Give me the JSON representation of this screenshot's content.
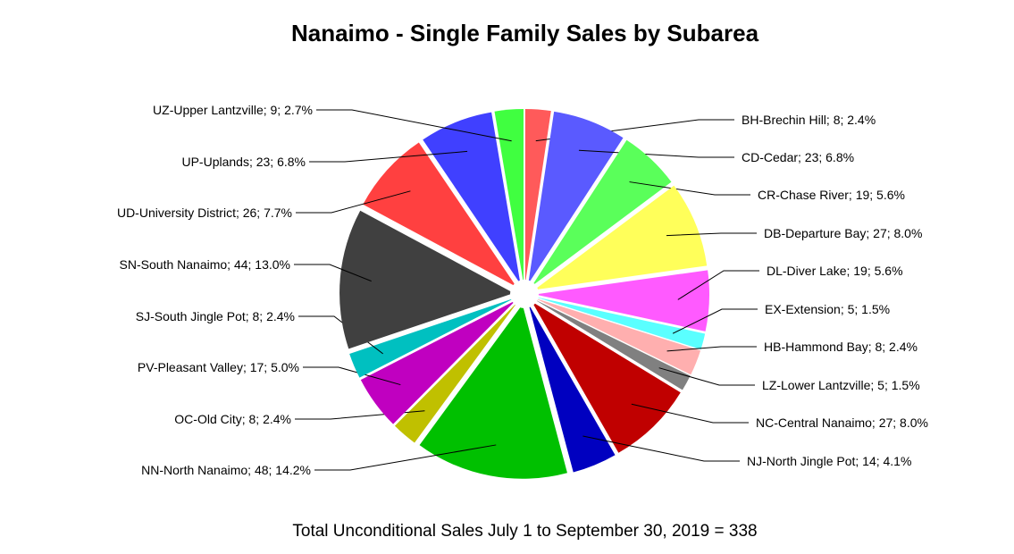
{
  "chart_data": {
    "type": "pie",
    "title": "Nanaimo - Single Family Sales by Subarea",
    "footer": "Total Unconditional Sales July 1 to September 30, 2019 = 338",
    "slices": [
      {
        "label": "BH-Brechin Hill; 8; 2.4%",
        "name": "BH-Brechin Hill",
        "value": 8,
        "percent": 2.4,
        "color": "#FF5A5A"
      },
      {
        "label": "CD-Cedar; 23; 6.8%",
        "name": "CD-Cedar",
        "value": 23,
        "percent": 6.8,
        "color": "#5A5AFF"
      },
      {
        "label": "CR-Chase River; 19; 5.6%",
        "name": "CR-Chase River",
        "value": 19,
        "percent": 5.6,
        "color": "#5AFF5A"
      },
      {
        "label": "DB-Departure Bay; 27; 8.0%",
        "name": "DB-Departure Bay",
        "value": 27,
        "percent": 8.0,
        "color": "#FFFF5A"
      },
      {
        "label": "DL-Diver Lake; 19; 5.6%",
        "name": "DL-Diver Lake",
        "value": 19,
        "percent": 5.6,
        "color": "#FF5AFF"
      },
      {
        "label": "EX-Extension; 5; 1.5%",
        "name": "EX-Extension",
        "value": 5,
        "percent": 1.5,
        "color": "#5AFFFF"
      },
      {
        "label": "HB-Hammond Bay; 8; 2.4%",
        "name": "HB-Hammond Bay",
        "value": 8,
        "percent": 2.4,
        "color": "#FFAFAF"
      },
      {
        "label": "LZ-Lower Lantzville; 5; 1.5%",
        "name": "LZ-Lower Lantzville",
        "value": 5,
        "percent": 1.5,
        "color": "#808080"
      },
      {
        "label": "NC-Central Nanaimo; 27; 8.0%",
        "name": "NC-Central Nanaimo",
        "value": 27,
        "percent": 8.0,
        "color": "#C00000"
      },
      {
        "label": "NJ-North Jingle Pot; 14; 4.1%",
        "name": "NJ-North Jingle Pot",
        "value": 14,
        "percent": 4.1,
        "color": "#0000C0"
      },
      {
        "label": "NN-North Nanaimo; 48; 14.2%",
        "name": "NN-North Nanaimo",
        "value": 48,
        "percent": 14.2,
        "color": "#00C000"
      },
      {
        "label": "OC-Old City; 8; 2.4%",
        "name": "OC-Old City",
        "value": 8,
        "percent": 2.4,
        "color": "#C0C000"
      },
      {
        "label": "PV-Pleasant Valley; 17; 5.0%",
        "name": "PV-Pleasant Valley",
        "value": 17,
        "percent": 5.0,
        "color": "#C000C0"
      },
      {
        "label": "SJ-South Jingle Pot; 8; 2.4%",
        "name": "SJ-South Jingle Pot",
        "value": 8,
        "percent": 2.4,
        "color": "#00C0C0"
      },
      {
        "label": "SN-South Nanaimo; 44; 13.0%",
        "name": "SN-South Nanaimo",
        "value": 44,
        "percent": 13.0,
        "color": "#404040"
      },
      {
        "label": "UD-University District; 26; 7.7%",
        "name": "UD-University District",
        "value": 26,
        "percent": 7.7,
        "color": "#FF4040"
      },
      {
        "label": "UP-Uplands; 23; 6.8%",
        "name": "UP-Uplands",
        "value": 23,
        "percent": 6.8,
        "color": "#4040FF"
      },
      {
        "label": "UZ-Upper Lantzville; 9; 2.7%",
        "name": "UZ-Upper Lantzville",
        "value": 9,
        "percent": 2.7,
        "color": "#40FF40"
      }
    ]
  }
}
